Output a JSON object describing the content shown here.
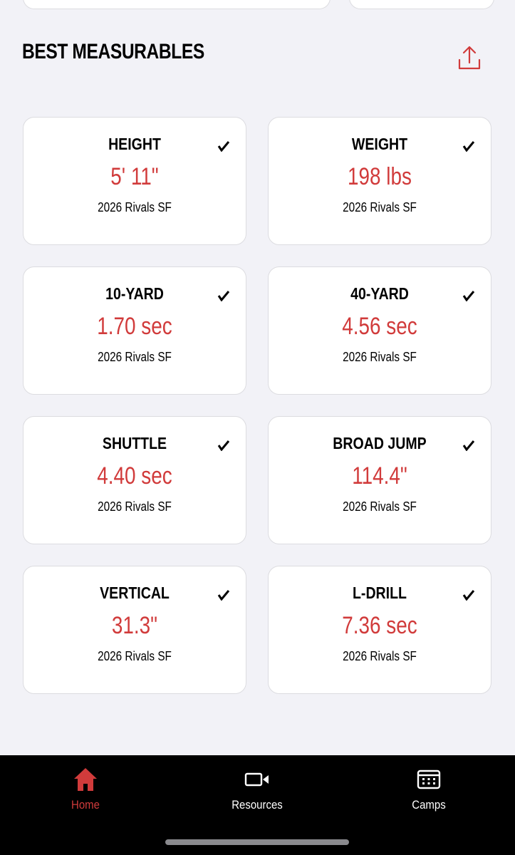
{
  "section": {
    "title": "BEST MEASURABLES"
  },
  "cards": [
    {
      "label": "HEIGHT",
      "value": "5' 11\"",
      "source": "2026 Rivals SF"
    },
    {
      "label": "WEIGHT",
      "value": "198 lbs",
      "source": "2026 Rivals SF"
    },
    {
      "label": "10-YARD",
      "value": "1.70 sec",
      "source": "2026 Rivals SF"
    },
    {
      "label": "40-YARD",
      "value": "4.56 sec",
      "source": "2026 Rivals SF"
    },
    {
      "label": "SHUTTLE",
      "value": "4.40 sec",
      "source": "2026 Rivals SF"
    },
    {
      "label": "BROAD JUMP",
      "value": "114.4\"",
      "source": "2026 Rivals SF"
    },
    {
      "label": "VERTICAL",
      "value": "31.3\"",
      "source": "2026 Rivals SF"
    },
    {
      "label": "L-DRILL",
      "value": "7.36 sec",
      "source": "2026 Rivals SF"
    }
  ],
  "nav": [
    {
      "label": "Home"
    },
    {
      "label": "Resources"
    },
    {
      "label": "Camps"
    }
  ]
}
